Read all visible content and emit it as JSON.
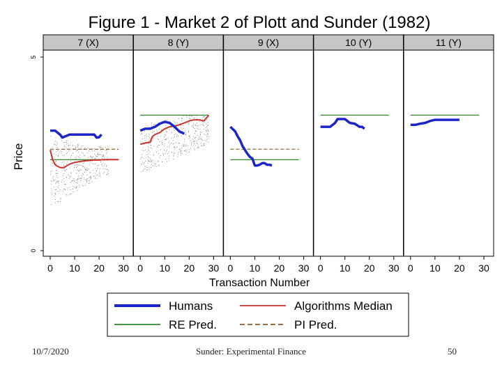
{
  "slide": {
    "footer_date": "10/7/2020",
    "footer_center": "Sunder: Experimental Finance",
    "page_number": "50"
  },
  "chart_data": {
    "type": "line",
    "title": "Figure 1 - Market 2 of Plott and Sunder (1982)",
    "xlabel": "Transaction Number",
    "ylabel": "Price",
    "xlim": [
      0,
      30
    ],
    "x_ticks": [
      0,
      10,
      20,
      30
    ],
    "ylim": [
      0,
      5
    ],
    "y_tick_labels": [
      "5",
      "0"
    ],
    "colors": {
      "humans": "#1c25c7",
      "algorithms": "#c8322c",
      "re": "#2a8a2a",
      "pi": "#8b5a2b"
    },
    "legend": {
      "placement": "bottom",
      "entries": [
        {
          "key": "humans",
          "label": "Humans",
          "style": "thick-solid"
        },
        {
          "key": "algorithms",
          "label": "Algorithms Median",
          "style": "solid"
        },
        {
          "key": "re",
          "label": "RE Pred.",
          "style": "solid"
        },
        {
          "key": "pi",
          "label": "PI Pred.",
          "style": "dashed"
        }
      ]
    },
    "panels": [
      {
        "label": "7 (X)",
        "re_pred": {
          "x": [
            0,
            28
          ],
          "y": 2.35
        },
        "pi_pred": {
          "x": [
            0,
            28
          ],
          "y": 2.62
        },
        "humans": {
          "x": [
            0,
            2,
            4,
            5,
            6,
            8,
            10,
            12,
            14,
            16,
            18,
            19,
            20,
            21
          ],
          "y": [
            3.1,
            3.1,
            3.0,
            2.92,
            2.95,
            3.0,
            3.0,
            3.0,
            3.0,
            3.0,
            3.0,
            2.92,
            2.93,
            3.0
          ]
        },
        "algorithms": {
          "x": [
            0,
            1,
            2,
            3,
            4,
            5,
            6,
            7,
            8,
            10,
            12,
            14,
            16,
            18,
            20,
            22,
            24,
            26,
            28
          ],
          "y": [
            2.6,
            2.35,
            2.22,
            2.18,
            2.15,
            2.14,
            2.16,
            2.2,
            2.24,
            2.28,
            2.3,
            2.32,
            2.33,
            2.34,
            2.34,
            2.35,
            2.35,
            2.35,
            2.35
          ]
        },
        "scatter_band": {
          "x_range": [
            0,
            24
          ],
          "lower": [
            1.15,
            1.3,
            1.5,
            1.7,
            1.85,
            2.0
          ],
          "upper": [
            3.0,
            2.9,
            2.8,
            2.7,
            2.7,
            2.7
          ]
        }
      },
      {
        "label": "8 (Y)",
        "re_pred": {
          "x": [
            0,
            28
          ],
          "y": 3.5
        },
        "pi_pred": null,
        "humans": {
          "x": [
            0,
            2,
            4,
            6,
            8,
            10,
            12,
            14,
            16,
            18
          ],
          "y": [
            3.1,
            3.15,
            3.15,
            3.2,
            3.28,
            3.33,
            3.3,
            3.2,
            3.08,
            3.02
          ]
        },
        "algorithms": {
          "x": [
            0,
            2,
            4,
            5,
            6,
            8,
            10,
            12,
            14,
            16,
            18,
            20,
            22,
            24,
            26,
            28
          ],
          "y": [
            2.75,
            2.78,
            2.8,
            2.95,
            3.0,
            3.05,
            3.15,
            3.2,
            3.22,
            3.25,
            3.3,
            3.35,
            3.38,
            3.38,
            3.35,
            3.5
          ]
        },
        "scatter_band": {
          "x_range": [
            0,
            28
          ],
          "lower": [
            2.0,
            2.15,
            2.3,
            2.45,
            2.6,
            2.8
          ],
          "upper": [
            3.2,
            3.35,
            3.45,
            3.5,
            3.5,
            3.5
          ]
        }
      },
      {
        "label": "9 (X)",
        "re_pred": {
          "x": [
            0,
            28
          ],
          "y": 2.35
        },
        "pi_pred": {
          "x": [
            0,
            28
          ],
          "y": 2.62
        },
        "humans": {
          "x": [
            0,
            2,
            3,
            4,
            5,
            6,
            7,
            8,
            9,
            10,
            11,
            12,
            13,
            14,
            15,
            16,
            17
          ],
          "y": [
            3.2,
            3.08,
            2.95,
            2.85,
            2.7,
            2.6,
            2.5,
            2.42,
            2.38,
            2.2,
            2.2,
            2.22,
            2.26,
            2.26,
            2.22,
            2.22,
            2.2
          ]
        },
        "algorithms": null,
        "scatter_band": null
      },
      {
        "label": "10 (Y)",
        "re_pred": {
          "x": [
            0,
            28
          ],
          "y": 3.5
        },
        "pi_pred": null,
        "humans": {
          "x": [
            0,
            2,
            4,
            6,
            7,
            8,
            9,
            10,
            11,
            12,
            14,
            16,
            17,
            18
          ],
          "y": [
            3.2,
            3.2,
            3.2,
            3.3,
            3.4,
            3.4,
            3.4,
            3.4,
            3.35,
            3.3,
            3.28,
            3.2,
            3.2,
            3.15
          ]
        },
        "algorithms": null,
        "scatter_band": null
      },
      {
        "label": "11 (Y)",
        "re_pred": {
          "x": [
            0,
            28
          ],
          "y": 3.5
        },
        "pi_pred": null,
        "humans": {
          "x": [
            0,
            2,
            4,
            6,
            8,
            10,
            12,
            14,
            16,
            18,
            20
          ],
          "y": [
            3.25,
            3.25,
            3.28,
            3.3,
            3.35,
            3.38,
            3.38,
            3.38,
            3.38,
            3.38,
            3.38
          ]
        },
        "algorithms": null,
        "scatter_band": null
      }
    ]
  }
}
